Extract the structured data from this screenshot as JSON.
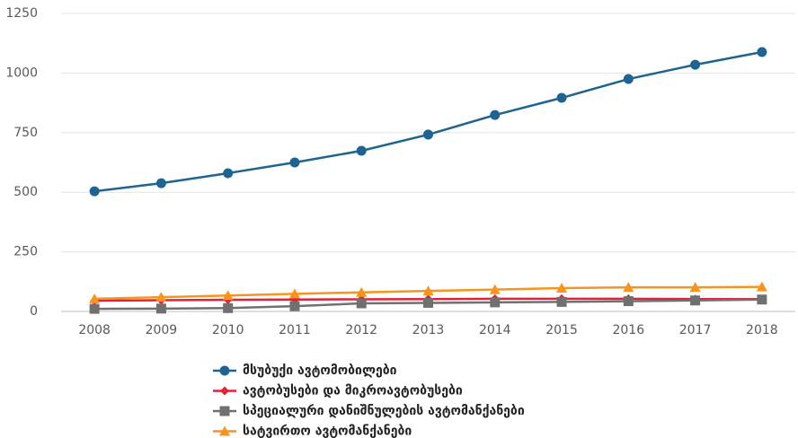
{
  "chart_data": {
    "type": "line",
    "categories": [
      "2008",
      "2009",
      "2010",
      "2011",
      "2012",
      "2013",
      "2014",
      "2015",
      "2016",
      "2017",
      "2018"
    ],
    "series": [
      {
        "name": "მსუბუქი ავტომობილები",
        "color": "#1f6391",
        "marker": "circle",
        "values": [
          504,
          538,
          580,
          625,
          674,
          742,
          824,
          896,
          975,
          1035,
          1088
        ]
      },
      {
        "name": "ავტობუსები და მიკროავტობუსები",
        "color": "#e0213a",
        "marker": "diamond",
        "values": [
          45,
          47,
          49,
          50,
          51,
          52,
          53,
          53,
          53,
          52,
          52
        ]
      },
      {
        "name": "სპეციალური დანიშნულების ავტომანქანები",
        "color": "#707070",
        "marker": "square",
        "values": [
          11,
          12,
          14,
          22,
          34,
          36,
          38,
          40,
          43,
          46,
          50
        ]
      },
      {
        "name": "სატვირთო ავტომანქანები",
        "color": "#f7941d",
        "marker": "triangle",
        "values": [
          53,
          60,
          67,
          74,
          80,
          86,
          92,
          98,
          101,
          101,
          103
        ]
      }
    ],
    "ylim": [
      0,
      1250
    ],
    "yticks": [
      0,
      250,
      500,
      750,
      1000,
      1250
    ],
    "grid": true
  }
}
